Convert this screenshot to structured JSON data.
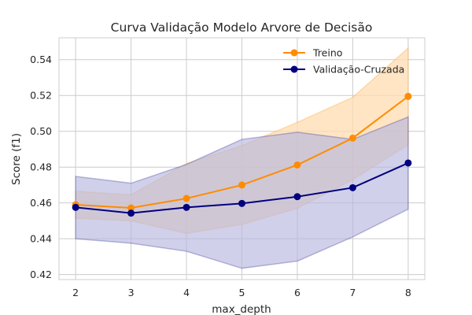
{
  "chart_data": {
    "type": "line",
    "title": "Curva Validação Modelo Arvore de Decisão",
    "xlabel": "max_depth",
    "ylabel": "Score (f1)",
    "x": [
      2,
      3,
      4,
      5,
      6,
      7,
      8
    ],
    "xticks": [
      "2",
      "3",
      "4",
      "5",
      "6",
      "7",
      "8"
    ],
    "yticks": [
      "0.42",
      "0.44",
      "0.46",
      "0.48",
      "0.50",
      "0.52",
      "0.54"
    ],
    "xlim": [
      1.7,
      8.3
    ],
    "ylim": [
      0.4172,
      0.5522
    ],
    "grid": true,
    "legend_position": "top-right",
    "series": [
      {
        "name": "Treino",
        "color": "#ff8c00",
        "values": [
          0.459,
          0.4572,
          0.4625,
          0.47,
          0.4812,
          0.4962,
          0.5195
        ],
        "band_low": [
          0.4515,
          0.45,
          0.443,
          0.448,
          0.457,
          0.473,
          0.4925
        ],
        "band_high": [
          0.4665,
          0.4645,
          0.482,
          0.492,
          0.505,
          0.519,
          0.5465
        ],
        "band_color": "#ffdcb0"
      },
      {
        "name": "Validação-Cruzada",
        "color": "#00007f",
        "values": [
          0.4575,
          0.4543,
          0.4575,
          0.4597,
          0.4635,
          0.4685,
          0.4823
        ],
        "band_low": [
          0.44,
          0.4375,
          0.433,
          0.4235,
          0.4275,
          0.441,
          0.4565
        ],
        "band_high": [
          0.4748,
          0.471,
          0.4815,
          0.4955,
          0.4995,
          0.4955,
          0.508
        ],
        "band_color": "#b7b7de"
      }
    ]
  }
}
